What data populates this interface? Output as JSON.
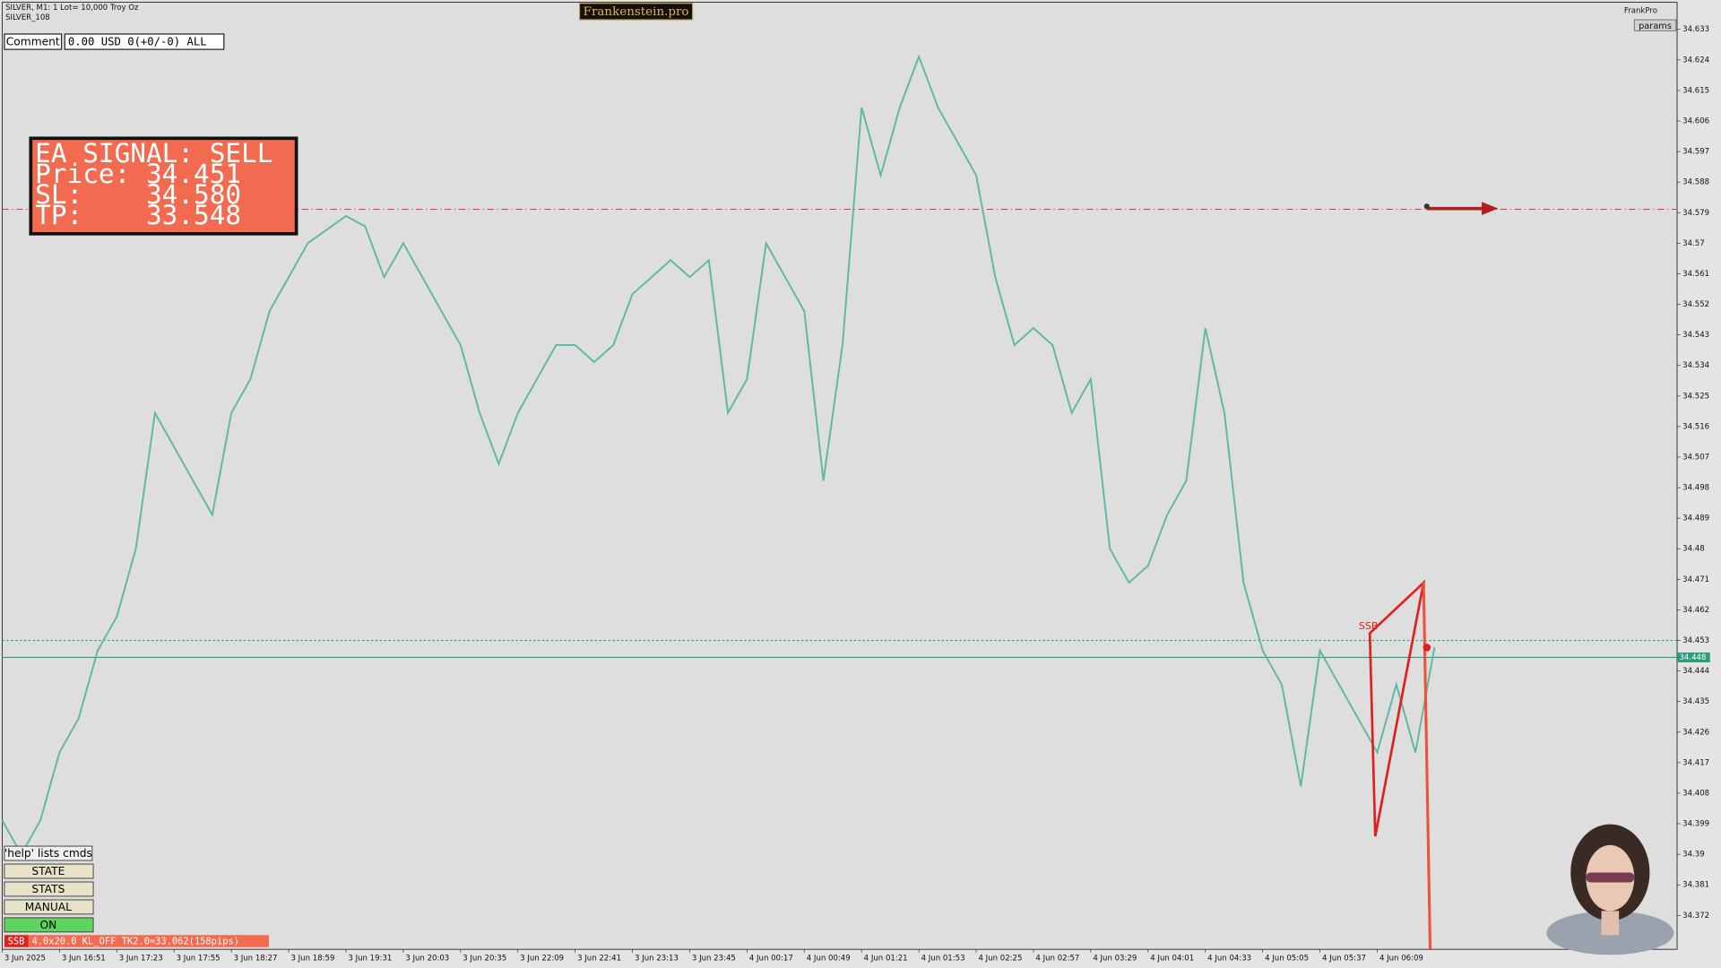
{
  "ui": {
    "symbol_info": "SILVER, M1:  1 Lot= 10,000 Troy Oz",
    "symbol_id": "SILVER_108",
    "brand": "Frankenstein.pro",
    "corner_label": "FrankPro",
    "params_button": "params",
    "comment_button": "Comment",
    "account_status": "0.00 USD 0(+0/-0) ALL",
    "signal_box": [
      "EA SIGNAL: SELL",
      "Price: 34.451",
      "SL:    34.580",
      "TP:    33.548"
    ],
    "buttons": [
      "'help' lists cmds",
      "STATE",
      "STATS",
      "MANUAL",
      "ON"
    ],
    "status_tag": "SSB",
    "status_text": "4.0x20.0 KL_OFF TK2.0=33.062(158pips)",
    "pattern_label": "SSB"
  },
  "chart_data": {
    "type": "line",
    "categories": [
      "3 Jun 2025",
      null,
      null,
      "3 Jun 16:51",
      null,
      null,
      "3 Jun 17:23",
      null,
      null,
      "3 Jun 17:55",
      null,
      null,
      "3 Jun 18:27",
      null,
      null,
      "3 Jun 18:59",
      null,
      null,
      "3 Jun 19:31",
      null,
      null,
      "3 Jun 20:03",
      null,
      null,
      "3 Jun 20:35",
      null,
      null,
      "3 Jun 22:09",
      null,
      null,
      "3 Jun 22:41",
      null,
      null,
      "3 Jun 23:13",
      null,
      null,
      "3 Jun 23:45",
      null,
      null,
      "4 Jun 00:17",
      null,
      null,
      "4 Jun 00:49",
      null,
      null,
      "4 Jun 01:21",
      null,
      null,
      "4 Jun 01:53",
      null,
      null,
      "4 Jun 02:25",
      null,
      null,
      "4 Jun 02:57",
      null,
      null,
      "4 Jun 03:29",
      null,
      null,
      "4 Jun 04:01",
      null,
      null,
      "4 Jun 04:33",
      null,
      null,
      "4 Jun 05:05",
      null,
      null,
      "4 Jun 05:37",
      null,
      null,
      "4 Jun 06:09",
      null,
      null,
      null
    ],
    "series": [
      {
        "name": "SILVER",
        "color": "#5fb8a5",
        "values": [
          34.4,
          34.39,
          34.4,
          34.42,
          34.43,
          34.45,
          34.46,
          34.48,
          34.52,
          34.51,
          34.5,
          34.49,
          34.52,
          34.53,
          34.55,
          34.56,
          34.57,
          34.574,
          34.578,
          34.575,
          34.56,
          34.57,
          34.56,
          34.55,
          34.54,
          34.52,
          34.505,
          34.52,
          34.53,
          34.54,
          34.54,
          34.535,
          34.54,
          34.555,
          34.56,
          34.565,
          34.56,
          34.565,
          34.52,
          34.53,
          34.57,
          34.56,
          34.55,
          34.5,
          34.54,
          34.61,
          34.59,
          34.61,
          34.625,
          34.61,
          34.6,
          34.59,
          34.56,
          34.54,
          34.545,
          34.54,
          34.52,
          34.53,
          34.48,
          34.47,
          34.475,
          34.49,
          34.5,
          34.545,
          34.52,
          34.47,
          34.45,
          34.44,
          34.41,
          34.45,
          34.44,
          34.43,
          34.42,
          34.44,
          34.42,
          34.451
        ]
      }
    ],
    "ylim": [
      34.362,
      34.641
    ],
    "yticks": [
      34.633,
      34.624,
      34.615,
      34.606,
      34.597,
      34.588,
      34.579,
      34.57,
      34.561,
      34.552,
      34.543,
      34.534,
      34.525,
      34.516,
      34.507,
      34.498,
      34.489,
      34.48,
      34.471,
      34.462,
      34.453,
      34.444,
      34.435,
      34.426,
      34.417,
      34.408,
      34.399,
      34.39,
      34.381,
      34.372
    ],
    "price_lines": [
      {
        "value": 34.58,
        "color": "#d9363e",
        "style": "dashdot"
      },
      {
        "value": 34.453,
        "color": "#2a9d7a",
        "style": "dotted"
      },
      {
        "value": 34.448,
        "color": "#2a9d7a",
        "style": "solid"
      }
    ]
  }
}
